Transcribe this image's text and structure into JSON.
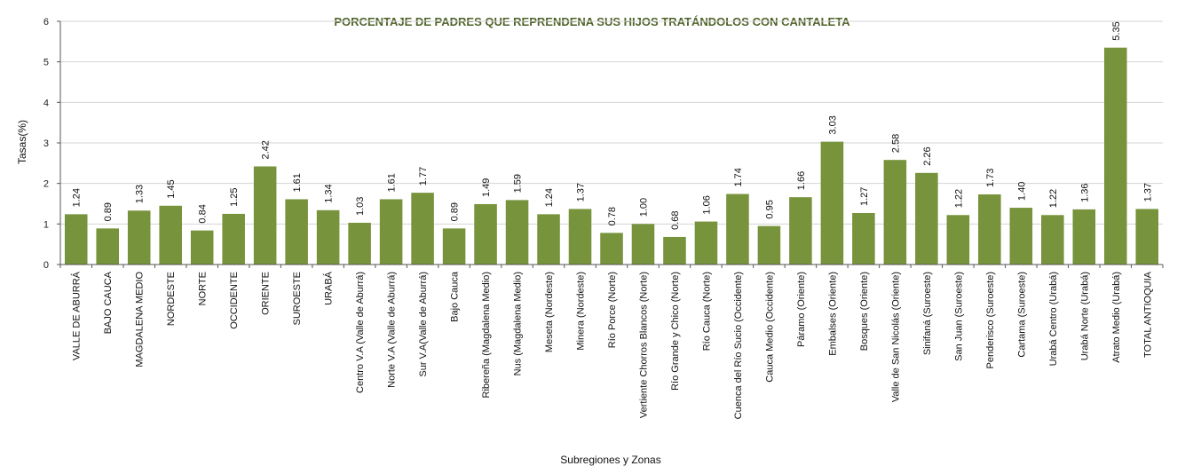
{
  "chart_data": {
    "type": "bar",
    "title": "PORCENTAJE DE PADRES QUE REPRENDENA SUS HIJOS TRATÁNDOLOS CON CANTALETA",
    "xlabel": "Subregiones y Zonas",
    "ylabel": "Tasas(%)",
    "ylim": [
      0,
      6
    ],
    "yticks": [
      "0",
      "1",
      "2",
      "3",
      "4",
      "5",
      "6"
    ],
    "grid": true,
    "bar_color": "#77933C",
    "title_color": "#4F6228",
    "categories": [
      "VALLE DE ABURRÁ",
      "BAJO CAUCA",
      "MAGDALENA MEDIO",
      "NORDESTE",
      "NORTE",
      "OCCIDENTE",
      "ORIENTE",
      "SUROESTE",
      "URABÁ",
      "Centro V.A (Valle de Aburrá)",
      "Norte V.A (Valle de Aburrá)",
      "Sur V.A(Valle de Aburrá)",
      "Bajo Cauca",
      "Ribereña  (Magdalena Medio)",
      "Nus  (Magdalena Medio)",
      "Meseta  (Nordeste)",
      "Minera  (Nordeste)",
      "Río Porce   (Norte)",
      "Vertiente Chorros Blancos  (Norte)",
      "Río Grande y Chico  (Norte)",
      "Río Cauca  (Norte)",
      "Cuenca del Río Sucio  (Occidente)",
      "Cauca Medio  (Occidente)",
      "Páramo  (Oriente)",
      "Embalses  (Oriente)",
      "Bosques  (Oriente)",
      "Valle de San Nicolás  (Oriente)",
      "Sinifaná  (Suroeste)",
      "San Juan  (Suroeste)",
      "Penderisco  (Suroeste)",
      "Cartama  (Suroeste)",
      "Urabá Centro  (Urabá)",
      "Urabá Norte  (Urabá)",
      "Atrato Medio  (Urabá)",
      "TOTAL ANTIOQUIA"
    ],
    "values": [
      1.24,
      0.89,
      1.33,
      1.45,
      0.84,
      1.25,
      2.42,
      1.61,
      1.34,
      1.03,
      1.61,
      1.77,
      0.89,
      1.49,
      1.59,
      1.24,
      1.37,
      0.78,
      1.0,
      0.68,
      1.06,
      1.74,
      0.95,
      1.66,
      3.03,
      1.27,
      2.58,
      2.26,
      1.22,
      1.73,
      1.4,
      1.22,
      1.36,
      5.35,
      1.37
    ],
    "value_labels": [
      "1.24",
      "0.89",
      "1.33",
      "1.45",
      "0.84",
      "1.25",
      "2.42",
      "1.61",
      "1.34",
      "1.03",
      "1.61",
      "1.77",
      "0.89",
      "1.49",
      "1.59",
      "1.24",
      "1.37",
      "0.78",
      "1.00",
      "0.68",
      "1.06",
      "1.74",
      "0.95",
      "1.66",
      "3.03",
      "1.27",
      "2.58",
      "2.26",
      "1.22",
      "1.73",
      "1.40",
      "1.22",
      "1.36",
      "5.35",
      "1.37"
    ]
  }
}
